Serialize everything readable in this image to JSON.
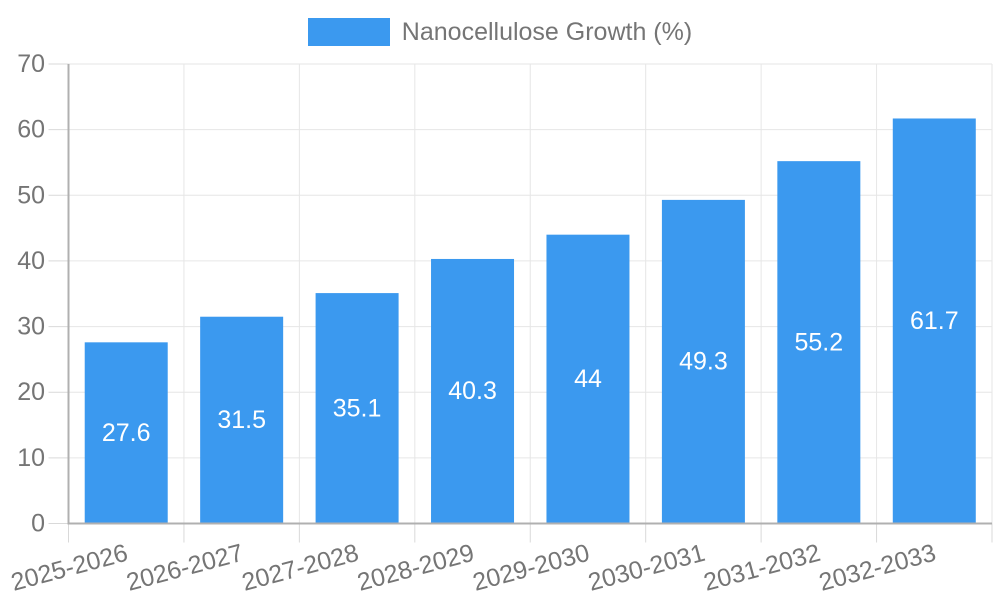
{
  "chart_data": {
    "type": "bar",
    "title": "Nanocellulose Growth (%)",
    "categories": [
      "2025-2026",
      "2026-2027",
      "2027-2028",
      "2028-2029",
      "2029-2030",
      "2030-2031",
      "2031-2032",
      "2032-2033"
    ],
    "values": [
      27.6,
      31.5,
      35.1,
      40.3,
      44,
      49.3,
      55.2,
      61.7
    ],
    "xlabel": "",
    "ylabel": "",
    "ylim": [
      0,
      70
    ],
    "ytick_step": 10,
    "yticks": [
      0,
      10,
      20,
      30,
      40,
      50,
      60,
      70
    ],
    "legend_position": "top",
    "grid": true,
    "colors": {
      "bar": "#3B99EF",
      "value_label": "#FFFFFF",
      "axis_text": "#757575",
      "grid": "#E6E6E6",
      "tick": "#D9D9D9",
      "axis_line": "#B0B0B0",
      "background": "#FFFFFF"
    }
  }
}
